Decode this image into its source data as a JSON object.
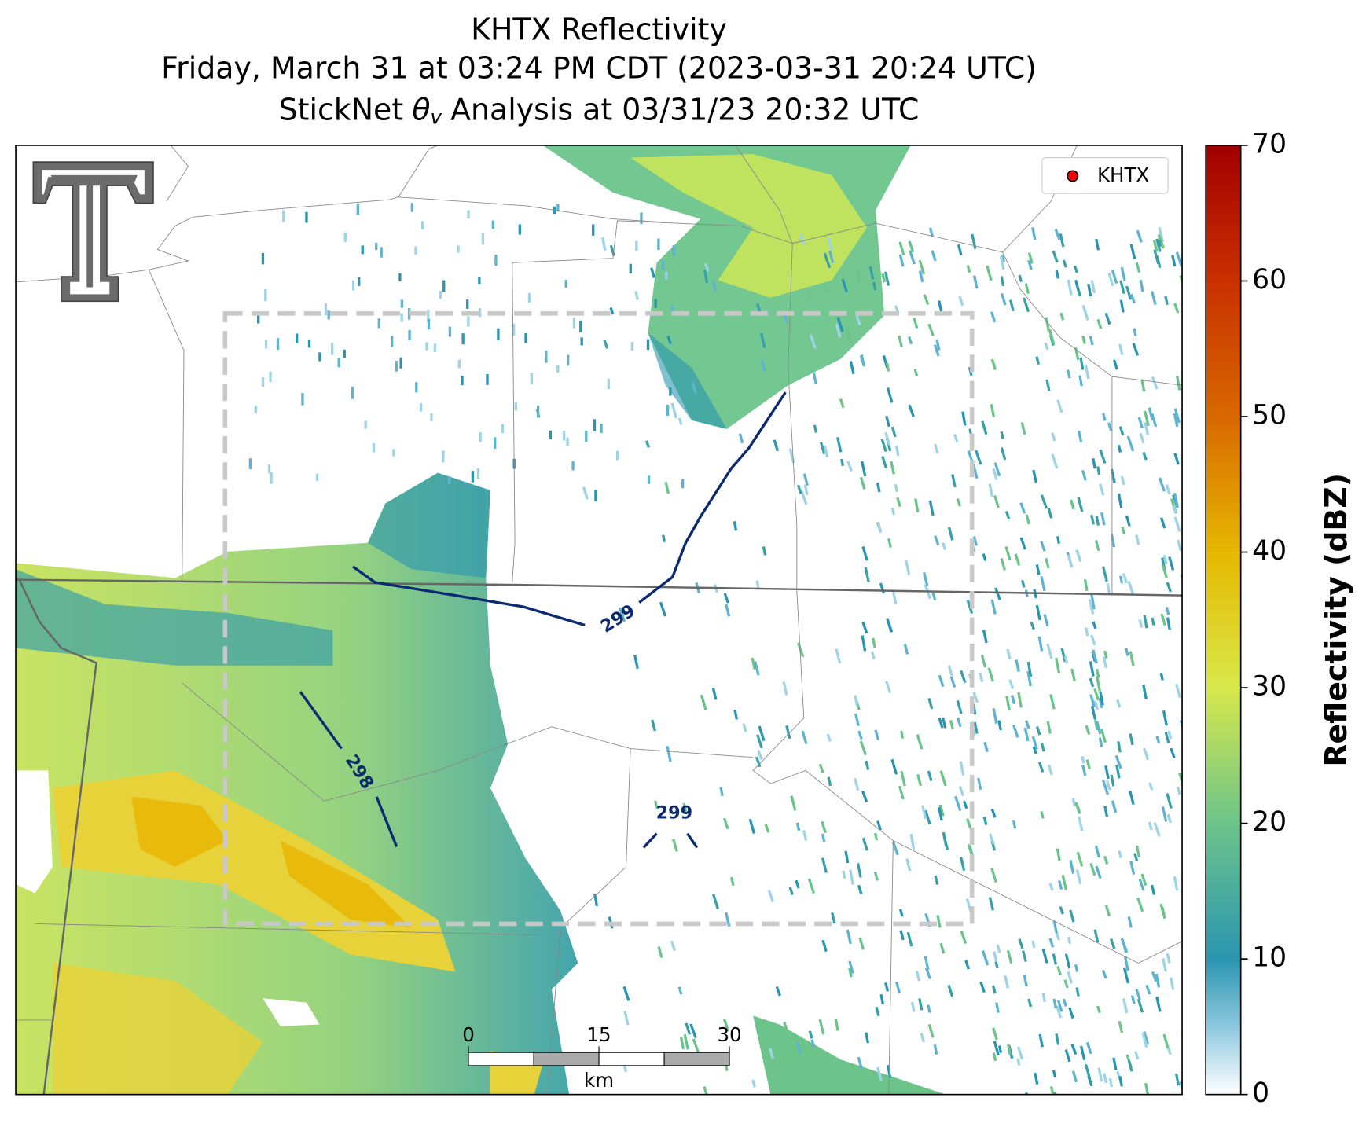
{
  "title": {
    "line1": "KHTX Reflectivity",
    "line2": "Friday, March 31 at 03:24 PM CDT (2023-03-31 20:24 UTC)",
    "line3": {
      "prefix": "StickNet",
      "symbol": "θ",
      "subscript": "v",
      "suffix": "Analysis at 03/31/23 20:32 UTC"
    }
  },
  "legend": {
    "label": "KHTX",
    "color": "#ff0000"
  },
  "contours": [
    {
      "label": 299
    },
    {
      "label": 298
    },
    {
      "label": 299
    }
  ],
  "scale_bar": {
    "range": [
      0,
      30
    ],
    "ticks": [
      0,
      15,
      30
    ],
    "unit": "km"
  },
  "colorbar": {
    "label": "Reflectivity (dBZ)",
    "lim": [
      0,
      70
    ],
    "ticks": [
      0,
      10,
      20,
      30,
      40,
      50,
      60,
      70
    ]
  }
}
